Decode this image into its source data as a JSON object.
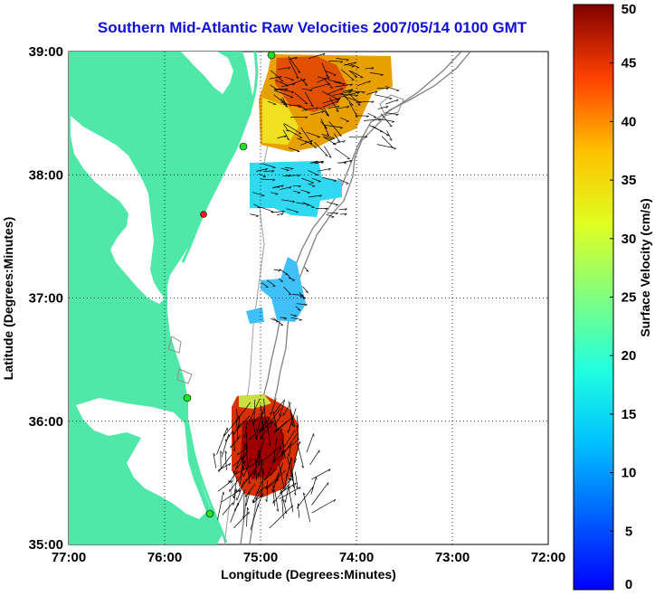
{
  "title": "Southern Mid-Atlantic Raw Velocities 2007/05/14 0100 GMT",
  "map": {
    "x_axis": {
      "label": "Longitude (Degrees:Minutes)",
      "ticks": [
        "77:00",
        "76:00",
        "75:00",
        "74:00",
        "73:00",
        "72:00"
      ],
      "range": [
        -77,
        -72
      ]
    },
    "y_axis": {
      "label": "Latitude (Degrees:Minutes)",
      "ticks": [
        "39:00",
        "38:00",
        "37:00",
        "36:00",
        "35:00"
      ],
      "range": [
        35,
        39
      ]
    },
    "grid": "dotted",
    "land_color": "#50e8a8",
    "arrow_color": "#000000",
    "bathymetry_color": "#808080"
  },
  "colorbar": {
    "label": "Surface Velocity (cm/s)",
    "ticks": [
      "0",
      "5",
      "10",
      "15",
      "20",
      "25",
      "30",
      "35",
      "40",
      "45",
      "50"
    ],
    "range": [
      0,
      50
    ],
    "colormap": "jet"
  }
}
